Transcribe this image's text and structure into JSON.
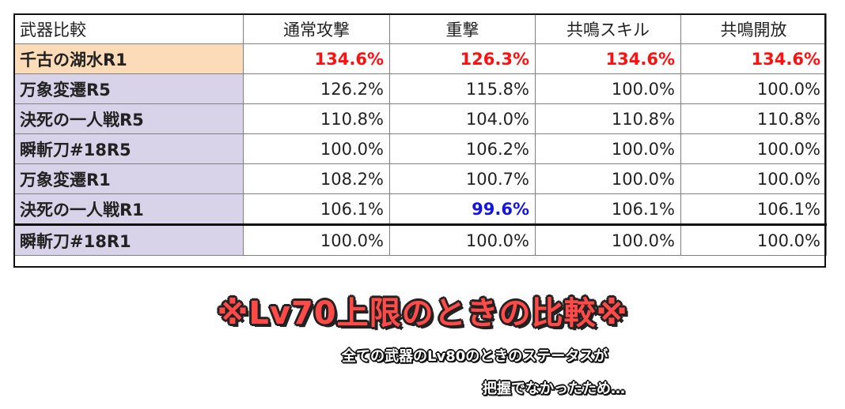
{
  "table": {
    "headers": [
      "武器比較",
      "通常攻撃",
      "重撃",
      "共鳴スキル",
      "共鳴開放"
    ],
    "rows": [
      {
        "name": "千古の湖水R1",
        "values": [
          "134.6%",
          "126.3%",
          "134.6%",
          "134.6%"
        ]
      },
      {
        "name": "万象変遷R5",
        "values": [
          "126.2%",
          "115.8%",
          "100.0%",
          "100.0%"
        ]
      },
      {
        "name": "決死の一人戦R5",
        "values": [
          "110.8%",
          "104.0%",
          "110.8%",
          "110.8%"
        ]
      },
      {
        "name": "瞬斬刀#18R5",
        "values": [
          "100.0%",
          "106.2%",
          "100.0%",
          "100.0%"
        ]
      },
      {
        "name": "万象変遷R1",
        "values": [
          "108.2%",
          "100.7%",
          "100.0%",
          "100.0%"
        ]
      },
      {
        "name": "決死の一人戦R1",
        "values": [
          "106.1%",
          "99.6%",
          "106.1%",
          "106.1%"
        ]
      },
      {
        "name": "瞬斬刀#18R1",
        "values": [
          "100.0%",
          "100.0%",
          "100.0%",
          "100.0%"
        ]
      }
    ]
  },
  "colors": {
    "highlight_red": "#ff1010",
    "highlight_blue": "#1414e6",
    "top_row_fill": "#fcdcb8",
    "name_fill": "#d9d3e9",
    "caption_red": "#ff4a48"
  },
  "caption": {
    "title": "※Lv70上限のときの比較※",
    "note_line1": "全ての武器のLv80のときのステータスが",
    "note_line2": "把握でなかったため…"
  }
}
